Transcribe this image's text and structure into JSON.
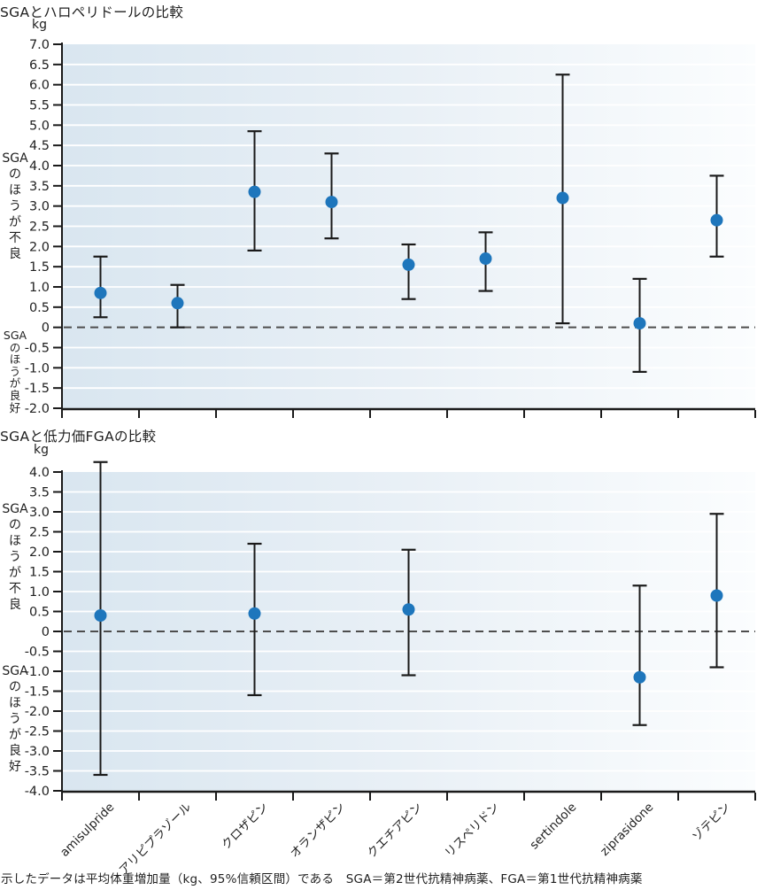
{
  "caption": "示したデータは平均体重増加量（kg、95%信頼区間）である　SGA＝第2世代抗精神病薬、FGA＝第1世代抗精神病薬",
  "colors": {
    "point": "#1e76bc",
    "error_bar": "#1a1a1a",
    "axis": "#1a1a1a",
    "zero_line": "#4d4d4d",
    "gridline": "#ffffff",
    "plot_bg_left": "#d9e6f0",
    "plot_bg_mid": "#e9f0f6",
    "plot_bg_right": "#fbfdfe",
    "text": "#1f1f1f"
  },
  "chart_data": [
    {
      "type": "scatter",
      "title": "SGAとハロペリドールの比較",
      "unit": "kg",
      "ylabel_upper": "SGAのほうが不良",
      "ylabel_lower": "SGAのほうが良好",
      "ylim": [
        -2.0,
        7.0
      ],
      "ytick_step": 0.5,
      "grid": true,
      "zero_line": "dashed",
      "legend": "none",
      "categories": [
        "amisulpride",
        "アリピプラゾール",
        "クロザピン",
        "オランザピン",
        "クエチアピン",
        "リスペリドン",
        "sertindole",
        "ziprasidone",
        "ゾテピン"
      ],
      "means": [
        0.85,
        0.6,
        3.35,
        3.1,
        1.55,
        1.7,
        3.2,
        0.1,
        2.65
      ],
      "ci_low": [
        0.25,
        0.0,
        1.9,
        2.2,
        0.7,
        0.9,
        0.1,
        -1.1,
        1.75
      ],
      "ci_high": [
        1.75,
        1.05,
        4.85,
        4.3,
        2.05,
        2.35,
        6.25,
        1.2,
        3.75
      ]
    },
    {
      "type": "scatter",
      "title": "SGAと低力価FGAの比較",
      "unit": "kg",
      "ylabel_upper": "SGAのほうが不良",
      "ylabel_lower": "SGAのほうが良好",
      "ylim": [
        -4.0,
        4.0
      ],
      "ytick_step": 0.5,
      "grid": true,
      "zero_line": "dashed",
      "legend": "none",
      "categories": [
        "amisulpride",
        "アリピプラゾール",
        "クロザピン",
        "オランザピン",
        "クエチアピン",
        "リスペリドン",
        "sertindole",
        "ziprasidone",
        "ゾテピン"
      ],
      "means": [
        0.4,
        null,
        0.45,
        null,
        0.55,
        null,
        null,
        -1.15,
        0.9
      ],
      "ci_low": [
        -3.6,
        null,
        -1.6,
        null,
        -1.1,
        null,
        null,
        -2.35,
        -0.9
      ],
      "ci_high": [
        4.25,
        null,
        2.2,
        null,
        2.05,
        null,
        null,
        1.15,
        2.95
      ]
    }
  ]
}
